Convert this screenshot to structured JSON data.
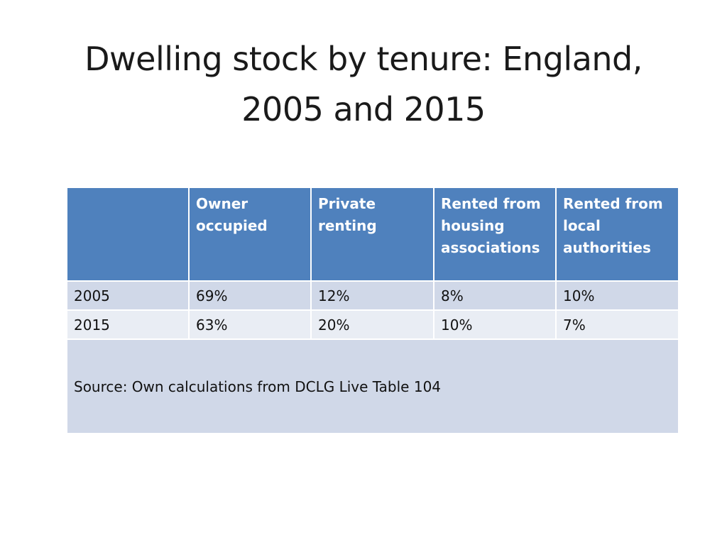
{
  "slide": {
    "title_line1": "Dwelling stock by tenure: England,",
    "title_line2": "2005 and 2015"
  },
  "table": {
    "headers": [
      "",
      "Owner occupied",
      "Private renting",
      "Rented from housing associations",
      "Rented from local authorities"
    ],
    "rows": [
      {
        "year": "2005",
        "values": [
          "69%",
          "12%",
          "8%",
          "10%"
        ]
      },
      {
        "year": "2015",
        "values": [
          "63%",
          "20%",
          "10%",
          "7%"
        ]
      }
    ],
    "source": "Source: Own calculations from DCLG Live Table 104"
  },
  "colors": {
    "header_bg": "#4f81bd",
    "row_odd_bg": "#d0d8e8",
    "row_even_bg": "#e9edf4"
  }
}
